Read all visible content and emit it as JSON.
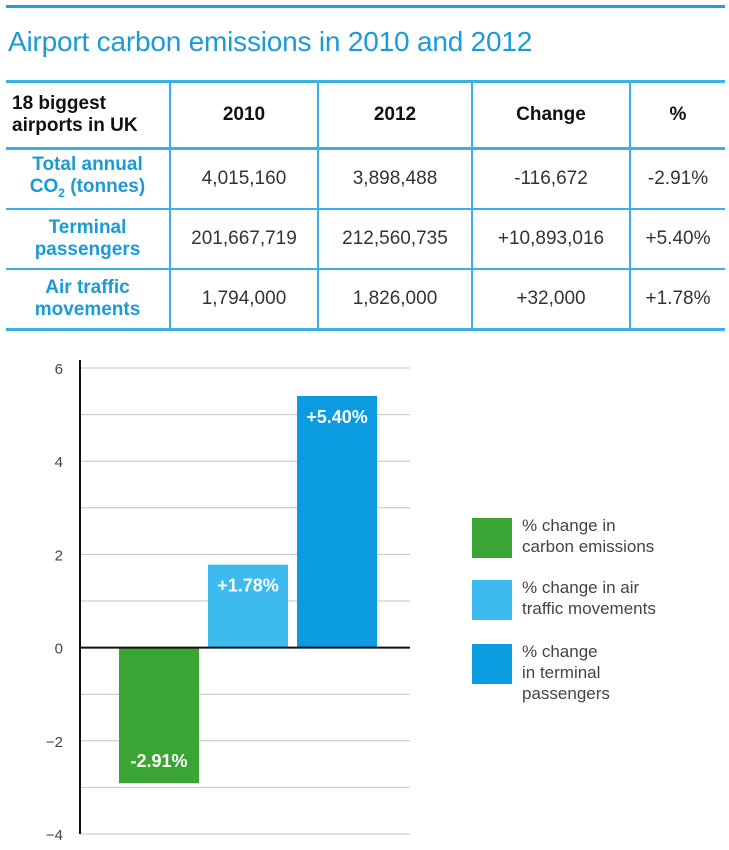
{
  "title": "Airport carbon emissions in 2010 and 2012",
  "table": {
    "corner_line1": "18 biggest",
    "corner_line2": "airports in UK",
    "columns": [
      "2010",
      "2012",
      "Change",
      "%"
    ],
    "rows": [
      {
        "label_line1": "Total annual",
        "label_line2_main": "CO",
        "label_line2_sub": "2",
        "label_line2_rest": " (tonnes)",
        "cells": [
          "4,015,160",
          "3,898,488",
          "-116,672",
          "-2.91%"
        ]
      },
      {
        "label_line1": "Terminal",
        "label_line2": "passengers",
        "cells": [
          "201,667,719",
          "212,560,735",
          "+10,893,016",
          "+5.40%"
        ]
      },
      {
        "label_line1": "Air traffic",
        "label_line2": "movements",
        "cells": [
          "1,794,000",
          "1,826,000",
          "+32,000",
          "+1.78%"
        ]
      }
    ]
  },
  "chart_data": {
    "type": "bar",
    "categories": [
      "% change in carbon emissions",
      "% change in air traffic movements",
      "% change in terminal passengers"
    ],
    "values": [
      -2.91,
      1.78,
      5.4
    ],
    "data_labels": [
      "-2.91%",
      "+1.78%",
      "+5.40%"
    ],
    "colors": [
      "#3aa535",
      "#3dbbee",
      "#0a9be0"
    ],
    "ylim": [
      -4,
      6
    ],
    "yticks": [
      6,
      4,
      2,
      0,
      -2,
      -4
    ],
    "ytick_labels": [
      "6",
      "4",
      "2",
      "0",
      "−2",
      "−4"
    ],
    "grid": true,
    "legend_position": "right",
    "legend": [
      {
        "line1": "% change in",
        "line2": "carbon emissions"
      },
      {
        "line1": "% change in air",
        "line2": "traffic movements"
      },
      {
        "line1": "% change",
        "line2": "in terminal",
        "line3": "passengers"
      }
    ],
    "title": "",
    "xlabel": "",
    "ylabel": ""
  }
}
